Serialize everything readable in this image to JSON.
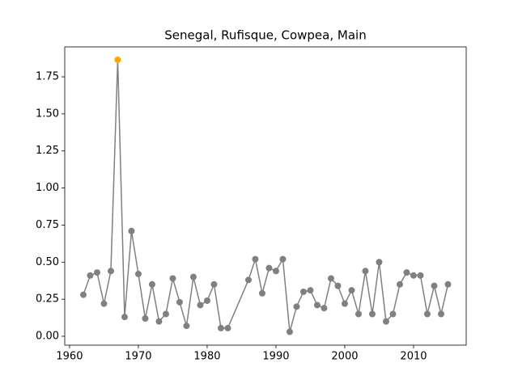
{
  "chart_data": {
    "type": "line",
    "title": "Senegal, Rufisque, Cowpea, Main",
    "x": [
      1962,
      1963,
      1964,
      1965,
      1966,
      1967,
      1968,
      1969,
      1970,
      1971,
      1972,
      1973,
      1974,
      1975,
      1976,
      1977,
      1978,
      1979,
      1980,
      1981,
      1982,
      1983,
      1986,
      1987,
      1988,
      1989,
      1990,
      1991,
      1992,
      1993,
      1994,
      1995,
      1996,
      1997,
      1998,
      1999,
      2000,
      2001,
      2002,
      2003,
      2004,
      2005,
      2006,
      2007,
      2008,
      2009,
      2010,
      2011,
      2012,
      2013,
      2014,
      2015
    ],
    "values": [
      0.28,
      0.41,
      0.43,
      0.22,
      0.44,
      1.865,
      0.13,
      0.71,
      0.42,
      0.12,
      0.35,
      0.1,
      0.15,
      0.39,
      0.23,
      0.07,
      0.4,
      0.21,
      0.24,
      0.35,
      0.055,
      0.055,
      0.38,
      0.52,
      0.29,
      0.46,
      0.44,
      0.52,
      0.03,
      0.2,
      0.3,
      0.31,
      0.21,
      0.19,
      0.39,
      0.34,
      0.22,
      0.31,
      0.15,
      0.44,
      0.15,
      0.5,
      0.1,
      0.15,
      0.35,
      0.43,
      0.41,
      0.41,
      0.15,
      0.34,
      0.15,
      0.35
    ],
    "color": "#808080",
    "marker_colors": [
      "#808080",
      "#808080",
      "#808080",
      "#808080",
      "#808080",
      "#ffa500",
      "#808080",
      "#808080",
      "#808080",
      "#808080",
      "#808080",
      "#808080",
      "#808080",
      "#808080",
      "#808080",
      "#808080",
      "#808080",
      "#808080",
      "#808080",
      "#808080",
      "#808080",
      "#808080",
      "#808080",
      "#808080",
      "#808080",
      "#808080",
      "#808080",
      "#808080",
      "#808080",
      "#808080",
      "#808080",
      "#808080",
      "#808080",
      "#808080",
      "#808080",
      "#808080",
      "#808080",
      "#808080",
      "#808080",
      "#808080",
      "#808080",
      "#808080",
      "#808080",
      "#808080",
      "#808080",
      "#808080",
      "#808080",
      "#808080",
      "#808080",
      "#808080",
      "#808080",
      "#808080"
    ],
    "xlim": [
      1959.3,
      2017.65
    ],
    "ylim": [
      -0.06,
      1.952
    ],
    "xticks": [
      1960,
      1970,
      1980,
      1990,
      2000,
      2010
    ],
    "yticks": [
      {
        "value": 0,
        "label": "0.00"
      },
      {
        "value": 0.25,
        "label": "0.25"
      },
      {
        "value": 0.5,
        "label": "0.50"
      },
      {
        "value": 0.75,
        "label": "0.75"
      },
      {
        "value": 1,
        "label": "1.00"
      },
      {
        "value": 1.25,
        "label": "1.25"
      },
      {
        "value": 1.5,
        "label": "1.50"
      },
      {
        "value": 1.75,
        "label": "1.75"
      }
    ]
  }
}
